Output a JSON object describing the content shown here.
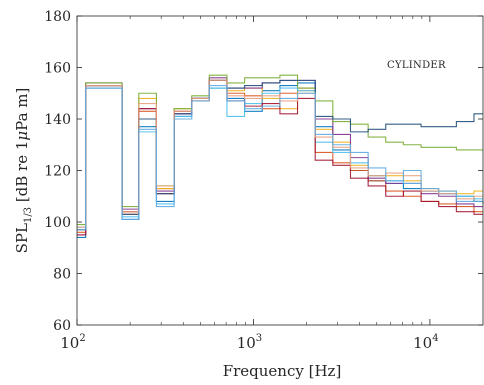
{
  "chart_data": {
    "type": "line",
    "step": true,
    "xscale": "log",
    "xlim": [
      100,
      20000
    ],
    "ylim": [
      60,
      180
    ],
    "xlabel": "Frequency [Hz]",
    "ylabel_main": "SPL",
    "ylabel_sub": "1/3",
    "ylabel_rest": " [dB re 1",
    "ylabel_mu": "μ",
    "ylabel_tail": "Pa m]",
    "annotation": "CYLINDER",
    "x_ticks": [
      {
        "value": 100,
        "base": "10",
        "exp": "2"
      },
      {
        "value": 1000,
        "base": "10",
        "exp": "3"
      },
      {
        "value": 10000,
        "base": "10",
        "exp": "4"
      }
    ],
    "y_ticks": [
      60,
      80,
      100,
      120,
      140,
      160,
      180
    ],
    "band_edges": [
      100,
      112,
      180,
      224,
      282,
      355,
      447,
      562,
      708,
      891,
      1122,
      1413,
      1778,
      2239,
      2818,
      3548,
      4467,
      5623,
      7079,
      8913,
      11220,
      14130,
      17780,
      20000
    ],
    "series": [
      {
        "color": "#0072BD",
        "values": [
          94,
          152,
          101,
          137,
          108,
          141,
          148,
          152,
          148,
          143,
          151,
          153,
          154,
          137,
          128,
          120,
          116,
          115,
          113,
          112,
          111,
          110,
          108,
          107
        ]
      },
      {
        "color": "#D95319",
        "values": [
          96,
          153,
          103,
          143,
          113,
          142,
          147,
          155,
          150,
          149,
          144,
          150,
          152,
          127,
          123,
          120,
          116,
          112,
          110,
          108,
          107,
          106,
          104,
          104
        ]
      },
      {
        "color": "#EDB120",
        "values": [
          97,
          153,
          104,
          148,
          113,
          144,
          148,
          155,
          151,
          152,
          148,
          144,
          151,
          136,
          131,
          122,
          118,
          118,
          116,
          113,
          112,
          111,
          112,
          112
        ]
      },
      {
        "color": "#7E2F8E",
        "values": [
          95,
          154,
          105,
          144,
          112,
          142,
          148,
          156,
          152,
          152,
          154,
          155,
          155,
          140,
          134,
          125,
          117,
          115,
          115,
          111,
          110,
          107,
          106,
          106
        ]
      },
      {
        "color": "#77AC30",
        "values": [
          99,
          154,
          106,
          150,
          114,
          144,
          149,
          157,
          154,
          156,
          156,
          157,
          152,
          147,
          139,
          138,
          133,
          131,
          130,
          129,
          129,
          128,
          128,
          128
        ]
      },
      {
        "color": "#4DBEEE",
        "values": [
          98,
          153,
          102,
          135,
          107,
          141,
          148,
          152,
          141,
          146,
          150,
          152,
          151,
          131,
          127,
          123,
          118,
          116,
          115,
          112,
          111,
          110,
          109,
          109
        ]
      },
      {
        "color": "#A2142F",
        "values": [
          95,
          153,
          104,
          144,
          111,
          143,
          148,
          155,
          147,
          145,
          146,
          142,
          148,
          124,
          122,
          117,
          114,
          110,
          112,
          108,
          106,
          104,
          103,
          103
        ]
      },
      {
        "color": "#1F4E79",
        "values": [
          97,
          153,
          103,
          140,
          111,
          142,
          148,
          155,
          152,
          153,
          154,
          155,
          155,
          141,
          140,
          135,
          136,
          138,
          138,
          137,
          137,
          139,
          142,
          142
        ]
      },
      {
        "color": "#E8A07E",
        "values": [
          98,
          153,
          104,
          146,
          114,
          143,
          148,
          155,
          149,
          148,
          149,
          147,
          150,
          133,
          129,
          121,
          118,
          119,
          118,
          112,
          111,
          109,
          110,
          110
        ]
      },
      {
        "color": "#5FA8E0",
        "values": [
          97,
          152,
          101,
          136,
          106,
          140,
          147,
          153,
          147,
          144,
          145,
          148,
          150,
          134,
          130,
          127,
          121,
          116,
          120,
          113,
          112,
          108,
          108,
          108
        ]
      }
    ]
  }
}
